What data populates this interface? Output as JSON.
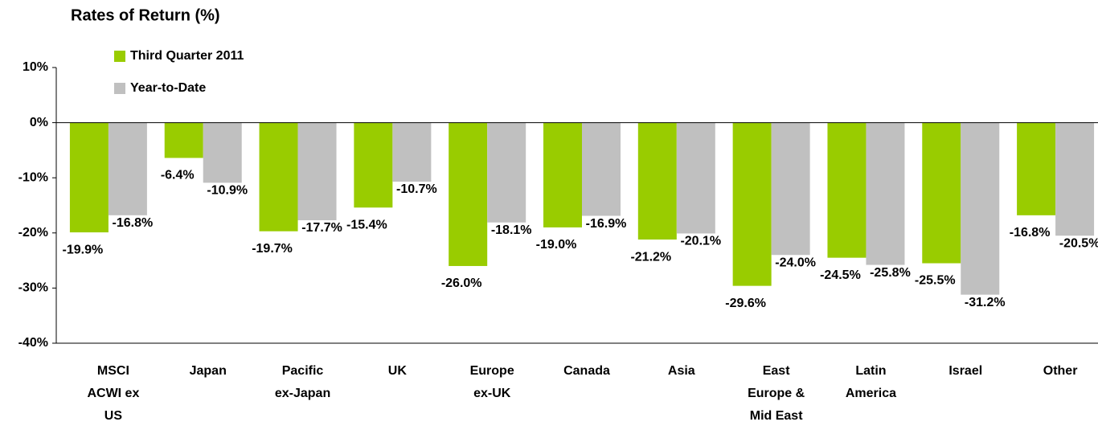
{
  "chart_data": {
    "type": "bar",
    "title": "Rates of Return (%)",
    "categories": [
      "MSCI\nACWI ex\nUS",
      "Japan",
      "Pacific\nex-Japan",
      "UK",
      "Europe\nex-UK",
      "Canada",
      "Asia",
      "East\nEurope &\nMid East",
      "Latin\nAmerica",
      "Israel",
      "Other"
    ],
    "series": [
      {
        "name": "Third Quarter 2011",
        "color": "#99cc00",
        "values": [
          -19.9,
          -6.4,
          -19.7,
          -15.4,
          -26.0,
          -19.0,
          -21.2,
          -29.6,
          -24.5,
          -25.5,
          -16.8
        ],
        "value_labels": [
          "-19.9%",
          "-6.4%",
          "-19.7%",
          "-15.4%",
          "-26.0%",
          "-19.0%",
          "-21.2%",
          "-29.6%",
          "-24.5%",
          "-25.5%",
          "-16.8%"
        ]
      },
      {
        "name": "Year-to-Date",
        "color": "#c0c0c0",
        "values": [
          -16.8,
          -10.9,
          -17.7,
          -10.7,
          -18.1,
          -16.9,
          -20.1,
          -24.0,
          -25.8,
          -31.2,
          -20.5
        ],
        "value_labels": [
          "-16.8%",
          "-10.9%",
          "-17.7%",
          "-10.7%",
          "-18.1%",
          "-16.9%",
          "-20.1%",
          "-24.0%",
          "-25.8%",
          "-31.2%",
          "-20.5%"
        ]
      }
    ],
    "ylim": [
      -40,
      10
    ],
    "yticks": [
      {
        "value": -40,
        "label": "-40%"
      },
      {
        "value": -30,
        "label": "-30%"
      },
      {
        "value": -20,
        "label": "-20%"
      },
      {
        "value": -10,
        "label": "-10%"
      },
      {
        "value": 0,
        "label": "0%"
      },
      {
        "value": 10,
        "label": "10%"
      }
    ],
    "legend": "upper left"
  }
}
